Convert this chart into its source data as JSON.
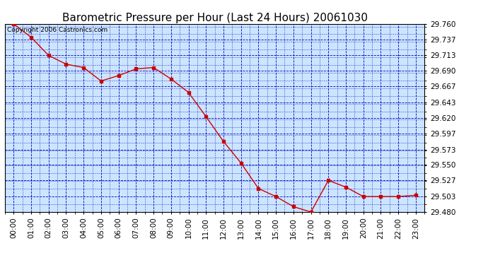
{
  "title": "Barometric Pressure per Hour (Last 24 Hours) 20061030",
  "copyright": "Copyright 2006 Castronics.com",
  "x_labels": [
    "00:00",
    "01:00",
    "02:00",
    "03:00",
    "04:00",
    "05:00",
    "06:00",
    "07:00",
    "08:00",
    "09:00",
    "10:00",
    "11:00",
    "12:00",
    "13:00",
    "14:00",
    "15:00",
    "16:00",
    "17:00",
    "18:00",
    "19:00",
    "20:00",
    "21:00",
    "22:00",
    "23:00"
  ],
  "y_values": [
    29.76,
    29.74,
    29.713,
    29.7,
    29.695,
    29.675,
    29.683,
    29.693,
    29.695,
    29.678,
    29.658,
    29.622,
    29.585,
    29.553,
    29.515,
    29.503,
    29.488,
    29.48,
    29.527,
    29.517,
    29.503,
    29.503,
    29.503,
    29.505
  ],
  "ylim_min": 29.48,
  "ylim_max": 29.76,
  "yticks": [
    29.48,
    29.503,
    29.527,
    29.55,
    29.573,
    29.597,
    29.62,
    29.643,
    29.667,
    29.69,
    29.713,
    29.737,
    29.76
  ],
  "line_color": "#cc0000",
  "marker_color": "#cc0000",
  "fig_bg_color": "#ffffff",
  "plot_bg_color": "#cce5ff",
  "grid_color": "#0000bb",
  "title_color": "#000000",
  "tick_label_color": "#000000",
  "border_color": "#000000",
  "copyright_color": "#000000",
  "title_fontsize": 11,
  "copyright_fontsize": 6.5,
  "tick_fontsize": 7.5,
  "fig_width": 6.9,
  "fig_height": 3.75,
  "dpi": 100
}
